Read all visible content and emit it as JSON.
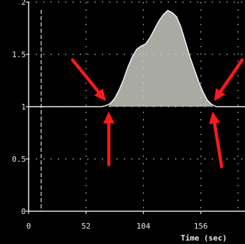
{
  "chart_data": {
    "type": "area",
    "title": "",
    "xlabel": "Time (sec)",
    "ylabel": "",
    "xlim": [
      0,
      196
    ],
    "ylim": [
      0,
      2
    ],
    "x_ticks": [
      "0",
      "52",
      "104",
      "156"
    ],
    "x_tick_values": [
      0,
      52,
      104,
      156
    ],
    "y_ticks": [
      "0",
      "0.5",
      "1",
      "1.5",
      "2"
    ],
    "y_tick_values": [
      0,
      0.5,
      1,
      1.5,
      2
    ],
    "grid": true,
    "baseline": 1.0,
    "series": [
      {
        "points": [
          [
            0,
            1.0
          ],
          [
            10,
            1.0
          ],
          [
            20,
            1.0
          ],
          [
            30,
            1.0
          ],
          [
            40,
            1.0
          ],
          [
            50,
            1.0
          ],
          [
            60,
            1.0
          ],
          [
            66,
            1.0
          ],
          [
            70,
            1.01
          ],
          [
            74,
            1.03
          ],
          [
            78,
            1.08
          ],
          [
            82,
            1.16
          ],
          [
            86,
            1.26
          ],
          [
            90,
            1.38
          ],
          [
            94,
            1.48
          ],
          [
            98,
            1.55
          ],
          [
            102,
            1.58
          ],
          [
            106,
            1.6
          ],
          [
            110,
            1.66
          ],
          [
            114,
            1.74
          ],
          [
            118,
            1.82
          ],
          [
            122,
            1.88
          ],
          [
            126,
            1.92
          ],
          [
            130,
            1.9
          ],
          [
            134,
            1.86
          ],
          [
            138,
            1.76
          ],
          [
            142,
            1.62
          ],
          [
            146,
            1.48
          ],
          [
            150,
            1.36
          ],
          [
            154,
            1.24
          ],
          [
            158,
            1.14
          ],
          [
            162,
            1.06
          ],
          [
            166,
            1.02
          ],
          [
            170,
            1.0
          ],
          [
            180,
            1.0
          ],
          [
            196,
            1.0
          ]
        ]
      }
    ],
    "shaded_region": {
      "from_x": 72,
      "to_x": 166,
      "above_baseline": true
    },
    "annotations": [
      {
        "type": "arrow",
        "x": 72,
        "y": 1.0,
        "direction": "from-upper-left"
      },
      {
        "type": "arrow",
        "x": 72,
        "y": 1.0,
        "direction": "from-below"
      },
      {
        "type": "arrow",
        "x": 166,
        "y": 1.0,
        "direction": "from-upper-right"
      },
      {
        "type": "arrow",
        "x": 166,
        "y": 1.0,
        "direction": "from-below"
      }
    ],
    "colors": {
      "background": "#000000",
      "axis": "#e8e8e8",
      "line": "#f0f0f0",
      "fill": "#a9aaa2",
      "grid": "#d8d8d8",
      "arrow": "#ff1a1a"
    }
  }
}
